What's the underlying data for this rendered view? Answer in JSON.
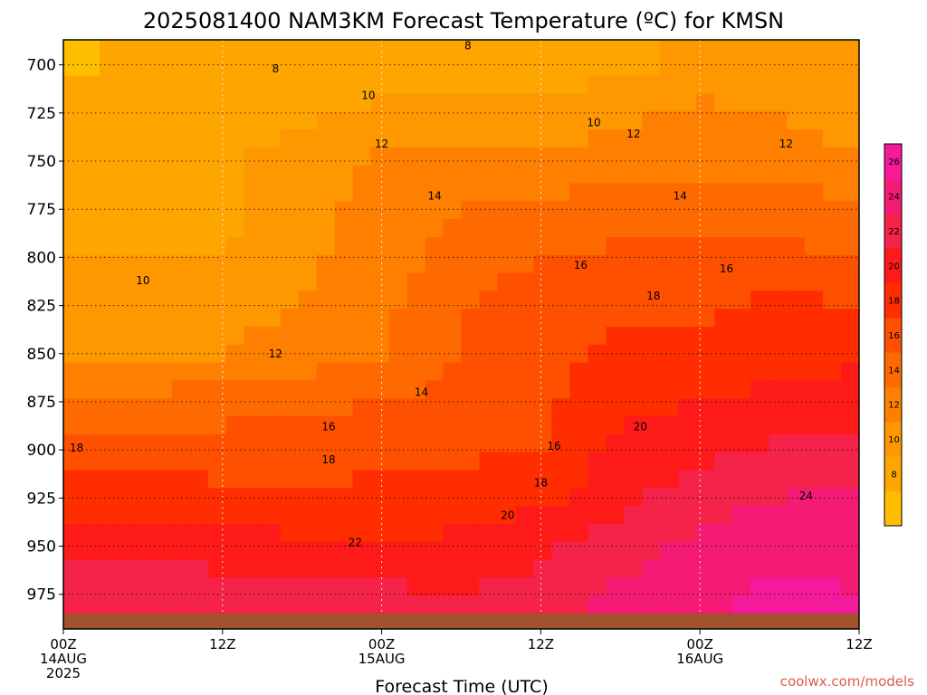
{
  "chart_data": {
    "type": "heatmap",
    "title": "2025081400 NAM3KM Forecast Temperature (ºC) for KMSN",
    "xlabel": "Forecast Time (UTC)",
    "ylabel": "",
    "y_axis": {
      "unit": "hPa",
      "reversed": true,
      "range": [
        687,
        985
      ],
      "ticks": [
        700,
        725,
        750,
        775,
        800,
        825,
        850,
        875,
        900,
        925,
        950,
        975
      ]
    },
    "x_axis": {
      "range_hours": [
        0,
        60
      ],
      "ticks": [
        {
          "hour": 0,
          "lines": [
            "00Z",
            "14AUG",
            "2025"
          ]
        },
        {
          "hour": 12,
          "lines": [
            "12Z"
          ]
        },
        {
          "hour": 24,
          "lines": [
            "00Z",
            "15AUG"
          ]
        },
        {
          "hour": 36,
          "lines": [
            "12Z"
          ]
        },
        {
          "hour": 48,
          "lines": [
            "00Z",
            "16AUG"
          ]
        },
        {
          "hour": 60,
          "lines": [
            "12Z"
          ]
        }
      ]
    },
    "grid": true,
    "colorbar": {
      "placement": "right",
      "levels": [
        6,
        8,
        10,
        12,
        14,
        16,
        18,
        20,
        22,
        24,
        26,
        28
      ],
      "labels": [
        8,
        10,
        12,
        14,
        16,
        18,
        20,
        22,
        24,
        26
      ],
      "colors": [
        "#ffbf00",
        "#ffa500",
        "#ff9800",
        "#ff8000",
        "#ff6a00",
        "#ff5000",
        "#ff2d00",
        "#ff1a1a",
        "#f5224a",
        "#f51a75",
        "#f51a9a"
      ]
    },
    "fields": {
      "pressures": [
        700,
        725,
        750,
        775,
        800,
        825,
        850,
        875,
        900,
        925,
        950,
        975
      ],
      "hours": [
        0,
        6,
        12,
        18,
        24,
        30,
        36,
        42,
        48,
        54,
        60
      ],
      "temperature_c": [
        [
          7.5,
          8.5,
          9.0,
          9.0,
          9.0,
          8.5,
          8.5,
          9.5,
          10.5,
          11.0,
          10.5
        ],
        [
          9.0,
          9.5,
          9.5,
          9.5,
          10.5,
          10.5,
          10.5,
          11.5,
          12.5,
          12.0,
          11.0
        ],
        [
          9.5,
          9.5,
          9.5,
          11.0,
          12.5,
          12.5,
          12.5,
          13.0,
          13.5,
          13.0,
          12.0
        ],
        [
          9.5,
          9.5,
          9.5,
          11.0,
          13.0,
          14.0,
          14.5,
          15.0,
          15.0,
          15.5,
          14.5
        ],
        [
          10.0,
          10.0,
          10.0,
          11.5,
          13.0,
          15.0,
          16.0,
          16.5,
          16.5,
          16.5,
          16.0
        ],
        [
          11.0,
          11.0,
          11.0,
          12.0,
          13.5,
          16.0,
          17.0,
          17.5,
          17.5,
          18.5,
          18.0
        ],
        [
          12.0,
          12.0,
          12.0,
          13.0,
          14.0,
          16.0,
          17.5,
          18.5,
          19.0,
          19.0,
          19.5
        ],
        [
          14.5,
          14.5,
          15.0,
          15.5,
          16.0,
          16.5,
          17.5,
          19.5,
          20.0,
          20.5,
          21.0
        ],
        [
          17.0,
          17.5,
          17.0,
          17.5,
          17.5,
          17.5,
          18.0,
          20.5,
          21.5,
          22.5,
          23.0
        ],
        [
          19.0,
          19.0,
          18.5,
          18.0,
          18.5,
          19.0,
          19.5,
          21.5,
          23.0,
          24.0,
          24.5
        ],
        [
          21.0,
          21.5,
          21.0,
          20.5,
          20.0,
          20.5,
          21.5,
          23.0,
          24.5,
          25.5,
          25.5
        ],
        [
          23.5,
          24.0,
          23.0,
          23.5,
          22.5,
          22.0,
          23.0,
          24.5,
          25.5,
          26.5,
          26.0
        ]
      ]
    },
    "contour_labels": [
      {
        "text": "8",
        "hour": 30.5,
        "p": 690
      },
      {
        "text": "8",
        "hour": 16.0,
        "p": 702
      },
      {
        "text": "10",
        "hour": 23.0,
        "p": 716
      },
      {
        "text": "10",
        "hour": 40.0,
        "p": 730
      },
      {
        "text": "12",
        "hour": 43.0,
        "p": 736
      },
      {
        "text": "12",
        "hour": 54.5,
        "p": 741
      },
      {
        "text": "12",
        "hour": 24.0,
        "p": 741
      },
      {
        "text": "14",
        "hour": 28.0,
        "p": 768
      },
      {
        "text": "14",
        "hour": 46.5,
        "p": 768
      },
      {
        "text": "10",
        "hour": 6.0,
        "p": 812
      },
      {
        "text": "16",
        "hour": 39.0,
        "p": 804
      },
      {
        "text": "16",
        "hour": 50.0,
        "p": 806
      },
      {
        "text": "18",
        "hour": 44.5,
        "p": 820
      },
      {
        "text": "12",
        "hour": 16.0,
        "p": 850
      },
      {
        "text": "14",
        "hour": 27.0,
        "p": 870
      },
      {
        "text": "16",
        "hour": 20.0,
        "p": 888
      },
      {
        "text": "20",
        "hour": 43.5,
        "p": 888
      },
      {
        "text": "16",
        "hour": 37.0,
        "p": 898
      },
      {
        "text": "18",
        "hour": 1.0,
        "p": 899
      },
      {
        "text": "18",
        "hour": 20.0,
        "p": 905
      },
      {
        "text": "18",
        "hour": 36.0,
        "p": 917
      },
      {
        "text": "24",
        "hour": 56.0,
        "p": 924
      },
      {
        "text": "20",
        "hour": 33.5,
        "p": 934
      },
      {
        "text": "22",
        "hour": 22.0,
        "p": 948
      }
    ]
  },
  "watermark": "coolwx.com/models"
}
